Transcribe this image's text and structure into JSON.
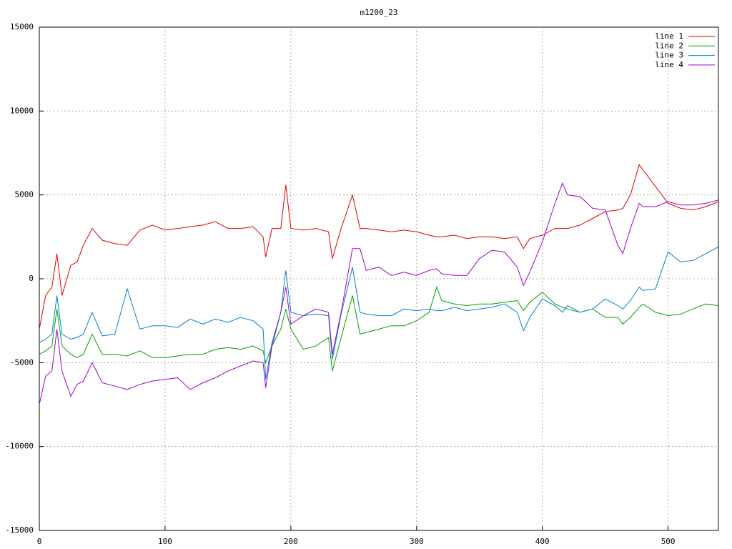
{
  "chart_data": {
    "type": "line",
    "title": "m1200_23",
    "x": [
      0,
      5,
      10,
      14,
      18,
      25,
      30,
      35,
      42,
      50,
      60,
      70,
      80,
      90,
      100,
      110,
      120,
      130,
      140,
      150,
      160,
      170,
      178,
      180,
      185,
      192,
      196,
      200,
      210,
      220,
      230,
      233,
      240,
      249,
      255,
      260,
      270,
      280,
      290,
      300,
      310,
      316,
      320,
      330,
      340,
      350,
      360,
      370,
      380,
      385,
      390,
      400,
      410,
      416,
      420,
      430,
      440,
      450,
      460,
      464,
      470,
      477,
      480,
      490,
      500,
      510,
      520,
      530,
      540
    ],
    "series": [
      {
        "name": "line 1",
        "color": "#e00000",
        "values": [
          -3000,
          -1000,
          -500,
          1500,
          -1000,
          800,
          1000,
          2000,
          3000,
          2300,
          2100,
          2000,
          2900,
          3200,
          2900,
          3000,
          3100,
          3200,
          3400,
          3000,
          3000,
          3100,
          2500,
          1300,
          3000,
          3000,
          5600,
          3000,
          2900,
          3000,
          2800,
          1200,
          3000,
          5000,
          3000,
          3000,
          2900,
          2800,
          2900,
          2800,
          2600,
          2500,
          2500,
          2600,
          2400,
          2500,
          2500,
          2400,
          2500,
          1800,
          2400,
          2600,
          3000,
          3000,
          3000,
          3200,
          3600,
          4000,
          4100,
          4200,
          5000,
          6800,
          6500,
          5500,
          4500,
          4200,
          4100,
          4300,
          4600
        ]
      },
      {
        "name": "line 2",
        "color": "#00a000",
        "values": [
          -4500,
          -4300,
          -4000,
          -1800,
          -4000,
          -4500,
          -4700,
          -4500,
          -3300,
          -4500,
          -4500,
          -4600,
          -4300,
          -4700,
          -4700,
          -4600,
          -4500,
          -4500,
          -4200,
          -4100,
          -4200,
          -4000,
          -4300,
          -5000,
          -4000,
          -3000,
          -1800,
          -3000,
          -4200,
          -4000,
          -3500,
          -5500,
          -3500,
          -1000,
          -3300,
          -3200,
          -3000,
          -2800,
          -2800,
          -2500,
          -2000,
          -500,
          -1300,
          -1500,
          -1600,
          -1500,
          -1500,
          -1400,
          -1300,
          -1900,
          -1400,
          -800,
          -1500,
          -1700,
          -1800,
          -2000,
          -1800,
          -2300,
          -2300,
          -2700,
          -2300,
          -1700,
          -1500,
          -2000,
          -2200,
          -2100,
          -1800,
          -1500,
          -1600
        ]
      },
      {
        "name": "line 3",
        "color": "#0080d0",
        "values": [
          -3800,
          -3600,
          -3300,
          -1000,
          -3300,
          -3600,
          -3500,
          -3300,
          -2000,
          -3400,
          -3300,
          -600,
          -3000,
          -2800,
          -2800,
          -2900,
          -2400,
          -2700,
          -2400,
          -2600,
          -2300,
          -2500,
          -3000,
          -6000,
          -3800,
          -2000,
          500,
          -2000,
          -2200,
          -2100,
          -2200,
          -4800,
          -2100,
          700,
          -2000,
          -2100,
          -2200,
          -2200,
          -1800,
          -1900,
          -1800,
          -1900,
          -1900,
          -1700,
          -1900,
          -1800,
          -1700,
          -1500,
          -2000,
          -3100,
          -2300,
          -1200,
          -1600,
          -2000,
          -1600,
          -2000,
          -1800,
          -1200,
          -1600,
          -1800,
          -1300,
          -500,
          -700,
          -600,
          1600,
          1000,
          1100,
          1500,
          1900
        ]
      },
      {
        "name": "line 4",
        "color": "#a000d0",
        "values": [
          -7500,
          -5800,
          -5500,
          -3000,
          -5500,
          -7000,
          -6300,
          -6100,
          -5000,
          -6200,
          -6400,
          -6600,
          -6300,
          -6100,
          -6000,
          -5900,
          -6600,
          -6200,
          -5900,
          -5500,
          -5200,
          -4900,
          -5000,
          -6500,
          -4000,
          -2000,
          -500,
          -2700,
          -2200,
          -1800,
          -2000,
          -4500,
          -2000,
          1800,
          1800,
          500,
          700,
          200,
          400,
          200,
          500,
          600,
          300,
          200,
          200,
          1200,
          1700,
          1600,
          700,
          -400,
          400,
          2200,
          4500,
          5700,
          5000,
          4900,
          4200,
          4100,
          2000,
          1500,
          3000,
          4500,
          4300,
          4300,
          4600,
          4400,
          4400,
          4500,
          4700
        ]
      }
    ],
    "xlim": [
      0,
      540
    ],
    "ylim": [
      -15000,
      15000
    ],
    "xticks": [
      0,
      100,
      200,
      300,
      400,
      500
    ],
    "yticks": [
      -15000,
      -10000,
      -5000,
      0,
      5000,
      10000,
      15000
    ],
    "grid": true,
    "legend": "top-right"
  }
}
